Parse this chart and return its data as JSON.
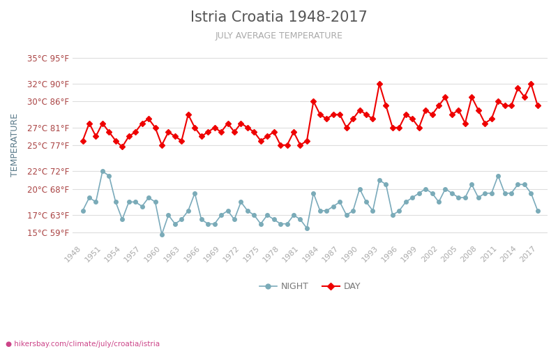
{
  "title": "Istria Croatia 1948-2017",
  "subtitle": "JULY AVERAGE TEMPERATURE",
  "ylabel": "TEMPERATURE",
  "xlabel_url": "hikersbay.com/climate/july/croatia/istria",
  "background_color": "#ffffff",
  "grid_color": "#dddddd",
  "title_color": "#555555",
  "subtitle_color": "#aaaaaa",
  "ylabel_color": "#5a7a8a",
  "tick_color": "#aa4444",
  "xtick_color": "#aaaaaa",
  "line_day_color": "#ee0000",
  "line_night_color": "#7aaabb",
  "marker_day_color": "#ee0000",
  "marker_night_color": "#7aabb8",
  "years": [
    1948,
    1949,
    1950,
    1951,
    1952,
    1953,
    1954,
    1955,
    1956,
    1957,
    1958,
    1959,
    1960,
    1961,
    1962,
    1963,
    1964,
    1965,
    1966,
    1967,
    1968,
    1969,
    1970,
    1971,
    1972,
    1973,
    1974,
    1975,
    1976,
    1977,
    1978,
    1979,
    1980,
    1981,
    1982,
    1983,
    1984,
    1985,
    1986,
    1987,
    1988,
    1989,
    1990,
    1991,
    1992,
    1993,
    1994,
    1995,
    1996,
    1997,
    1998,
    1999,
    2000,
    2001,
    2002,
    2003,
    2004,
    2005,
    2006,
    2007,
    2008,
    2009,
    2010,
    2011,
    2012,
    2013,
    2014,
    2015,
    2016,
    2017
  ],
  "day_temps": [
    25.5,
    27.5,
    26.0,
    27.5,
    26.5,
    25.5,
    24.8,
    26.0,
    26.5,
    27.5,
    28.0,
    27.0,
    25.0,
    26.5,
    26.0,
    25.5,
    28.5,
    27.0,
    26.0,
    26.5,
    27.0,
    26.5,
    27.5,
    26.5,
    27.5,
    27.0,
    26.5,
    25.5,
    26.0,
    26.5,
    25.0,
    25.0,
    26.5,
    25.0,
    25.5,
    30.0,
    28.5,
    28.0,
    28.5,
    28.5,
    27.0,
    28.0,
    29.0,
    28.5,
    28.0,
    32.0,
    29.5,
    27.0,
    27.0,
    28.5,
    28.0,
    27.0,
    29.0,
    28.5,
    29.5,
    30.5,
    28.5,
    29.0,
    27.5,
    30.5,
    29.0,
    27.5,
    28.0,
    30.0,
    29.5,
    29.5,
    31.5,
    30.5,
    32.0,
    29.5
  ],
  "night_temps": [
    17.5,
    19.0,
    18.5,
    22.0,
    21.5,
    18.5,
    16.5,
    18.5,
    18.5,
    18.0,
    19.0,
    18.5,
    14.8,
    17.0,
    16.0,
    16.5,
    17.5,
    19.5,
    16.5,
    16.0,
    16.0,
    17.0,
    17.5,
    16.5,
    18.5,
    17.5,
    17.0,
    16.0,
    17.0,
    16.5,
    16.0,
    16.0,
    17.0,
    16.5,
    15.5,
    19.5,
    17.5,
    17.5,
    18.0,
    18.5,
    17.0,
    17.5,
    20.0,
    18.5,
    17.5,
    21.0,
    20.5,
    17.0,
    17.5,
    18.5,
    19.0,
    19.5,
    20.0,
    19.5,
    18.5,
    20.0,
    19.5,
    19.0,
    19.0,
    20.5,
    19.0,
    19.5,
    19.5,
    21.5,
    19.5,
    19.5,
    20.5,
    20.5,
    19.5,
    17.5
  ],
  "yticks_c": [
    15,
    17,
    20,
    22,
    25,
    27,
    30,
    32,
    35
  ],
  "yticks_f": [
    59,
    63,
    68,
    72,
    77,
    81,
    86,
    90,
    95
  ],
  "ylim": [
    14,
    36
  ],
  "legend_night": "NIGHT",
  "legend_day": "DAY"
}
